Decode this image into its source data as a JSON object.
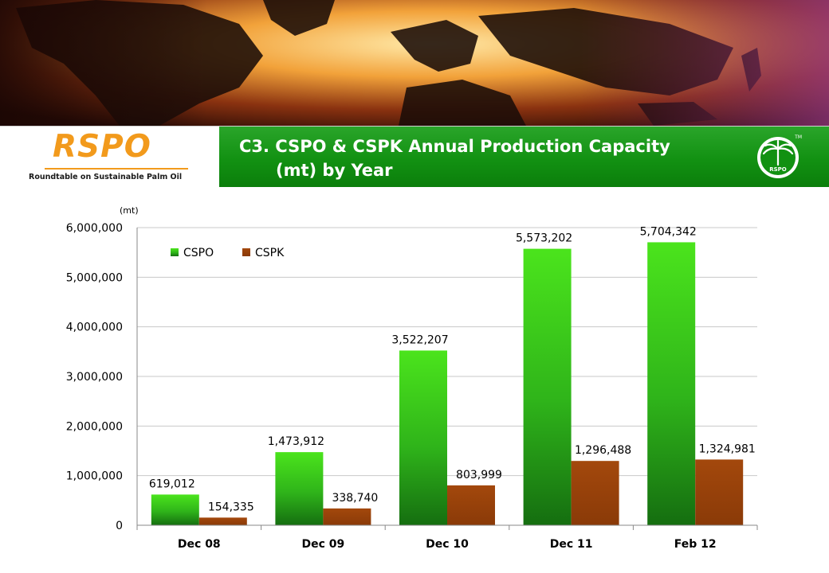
{
  "header": {
    "logo_text": "RSPO",
    "logo_tagline": "Roundtable on Sustainable Palm Oil",
    "title_line_1": "C3. CSPO & CSPK Annual Production Capacity",
    "title_line_2": "(mt) by Year",
    "emblem_text": "RSPO",
    "emblem_tm": "TM"
  },
  "colors": {
    "brand_orange": "#f29a1c",
    "title_green": "#129112",
    "cspo_green": "#3fd41a",
    "cspk_brown": "#a3480c"
  },
  "chart_data": {
    "type": "bar",
    "unit_label": "(mt)",
    "categories": [
      "Dec 08",
      "Dec 09",
      "Dec 10",
      "Dec 11",
      "Feb 12"
    ],
    "series": [
      {
        "name": "CSPO",
        "values": [
          619012,
          1473912,
          3522207,
          5573202,
          5704342
        ],
        "labels": [
          "619,012",
          "1,473,912",
          "3,522,207",
          "5,573,202",
          "5,704,342"
        ]
      },
      {
        "name": "CSPK",
        "values": [
          154335,
          338740,
          803999,
          1296488,
          1324981
        ],
        "labels": [
          "154,335",
          "338,740",
          "803,999",
          "1,296,488",
          "1,324,981"
        ]
      }
    ],
    "ylim": [
      0,
      6000000
    ],
    "yticks": [
      0,
      1000000,
      2000000,
      3000000,
      4000000,
      5000000,
      6000000
    ],
    "ytick_labels": [
      "0",
      "1,000,000",
      "2,000,000",
      "3,000,000",
      "4,000,000",
      "5,000,000",
      "6,000,000"
    ],
    "grid": true,
    "legend_position": "top-left"
  }
}
